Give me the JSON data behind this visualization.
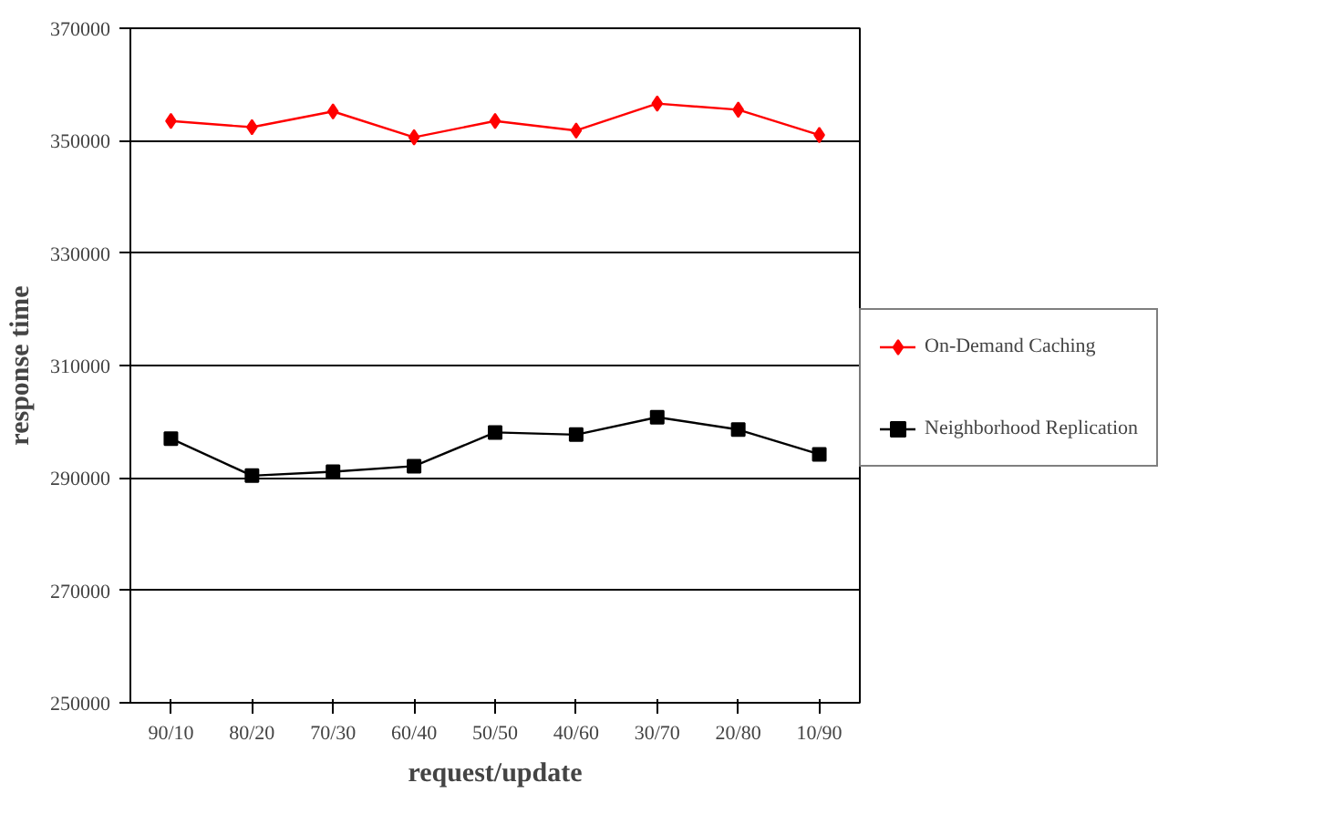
{
  "chart_data": {
    "type": "line",
    "xlabel": "request/update",
    "ylabel": "response time",
    "categories": [
      "90/10",
      "80/20",
      "70/30",
      "60/40",
      "50/50",
      "40/60",
      "30/70",
      "20/80",
      "10/90"
    ],
    "series": [
      {
        "name": "On-Demand Caching",
        "color": "#ff0000",
        "marker": "diamond",
        "values": [
          353500,
          352400,
          355200,
          350600,
          353500,
          351800,
          356600,
          355500,
          351000
        ]
      },
      {
        "name": "Neighborhood Replication",
        "color": "#000000",
        "marker": "square",
        "values": [
          297000,
          290400,
          291100,
          292100,
          298100,
          297700,
          300800,
          298600,
          294200
        ]
      }
    ],
    "ylim": [
      250000,
      370000
    ],
    "yticks": [
      250000,
      270000,
      290000,
      310000,
      330000,
      350000,
      370000
    ],
    "grid": "y",
    "legend": "right",
    "line_style": "solid"
  }
}
